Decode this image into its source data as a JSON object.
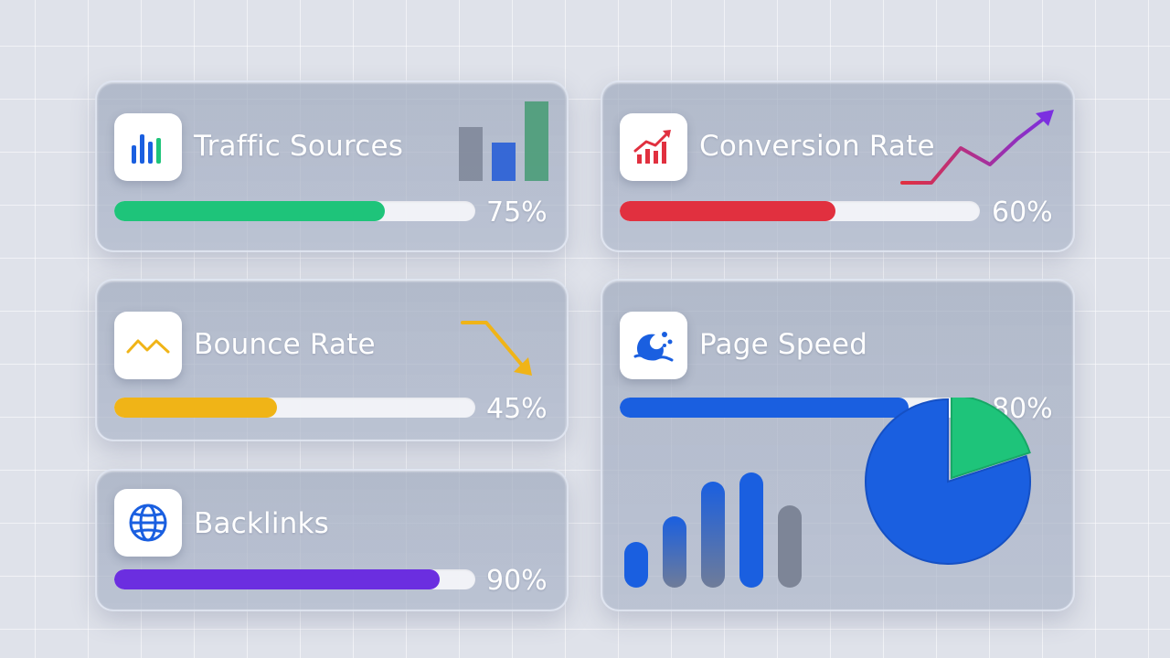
{
  "cards": [
    {
      "title": "Traffic Sources",
      "percent_label": "75%",
      "value": 0.75,
      "color": "#1ec47a",
      "icon": "bar-chart-icon"
    },
    {
      "title": "Conversion Rate",
      "percent_label": "60%",
      "value": 0.6,
      "color": "#e1303f",
      "icon": "trend-up-icon"
    },
    {
      "title": "Bounce Rate",
      "percent_label": "45%",
      "value": 0.45,
      "color": "#f0b417",
      "icon": "zigzag-line-icon"
    },
    {
      "title": "Page Speed",
      "percent_label": "80%",
      "value": 0.8,
      "color": "#1a5fe0",
      "icon": "speed-wave-icon"
    },
    {
      "title": "Backlinks",
      "percent_label": "90%",
      "value": 0.9,
      "color": "#6b2ee0",
      "icon": "globe-icon"
    }
  ],
  "page_speed_pie": {
    "blue_share": 0.8,
    "green_share": 0.2,
    "colors": [
      "#1a5fe0",
      "#1ec47a"
    ]
  },
  "colors": {
    "green": "#1ec47a",
    "red": "#e1303f",
    "yellow": "#f0b417",
    "blue": "#1a5fe0",
    "purple": "#6b2ee0"
  }
}
